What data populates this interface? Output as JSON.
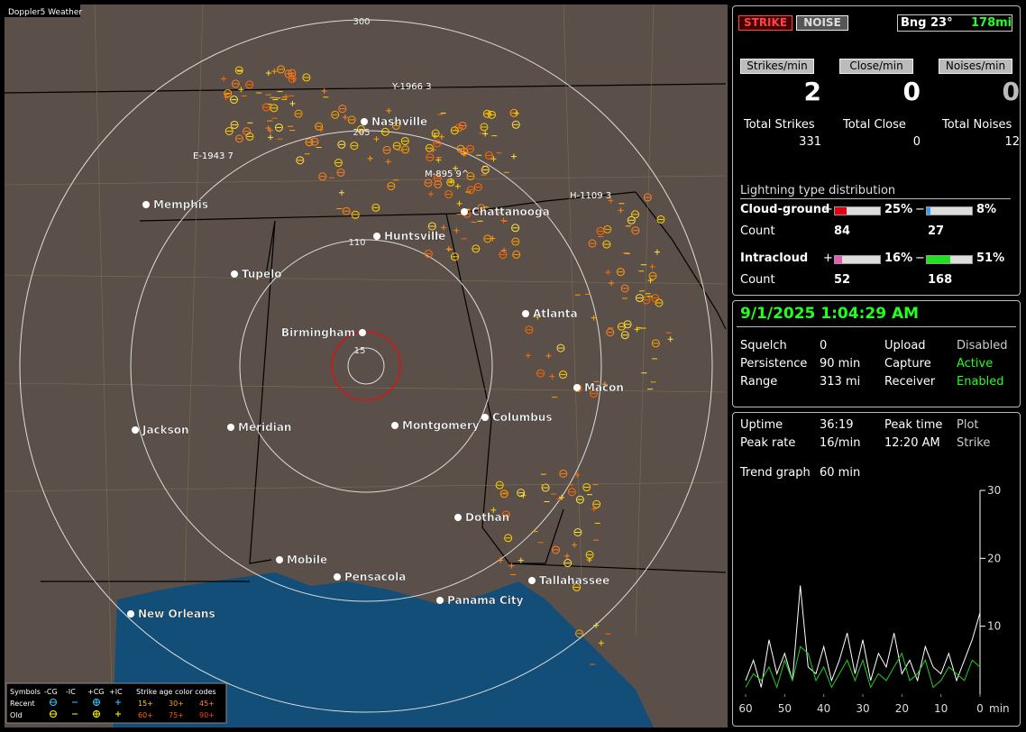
{
  "map": {
    "title": "Doppler5 Weather",
    "rings": [
      "300",
      "205",
      "110",
      "15"
    ],
    "cities": [
      "Nashville",
      "Memphis",
      "Chattanooga",
      "Huntsville",
      "Tupelo",
      "Atlanta",
      "Birmingham",
      "Macon",
      "Jackson",
      "Meridian",
      "Montgomery",
      "Columbus",
      "Dothan",
      "Mobile",
      "Pensacola",
      "Tallahassee",
      "Panama City",
      "New Orleans"
    ],
    "storms": [
      "Y-1966 3",
      "E-1943 7",
      "H-1109 3",
      "M-895 9^"
    ],
    "legend": {
      "symbols": "Symbols",
      "cols": [
        "-CG",
        "-IC",
        "+CG",
        "+IC"
      ],
      "age_title": "Strike age color codes",
      "recent": "Recent",
      "old": "Old",
      "recent_ages": [
        "15+",
        "30+",
        "45+"
      ],
      "old_ages": [
        "60+",
        "75+",
        "90+"
      ]
    }
  },
  "panel": {
    "strike": "STRIKE",
    "noise": "NOISE",
    "bearing": "Bng 23°",
    "distance": "178mi",
    "rate_labels": [
      "Strikes/min",
      "Close/min",
      "Noises/min"
    ],
    "rates": [
      2,
      0,
      0
    ],
    "total_labels": [
      "Total Strikes",
      "Total Close",
      "Total Noises"
    ],
    "totals": [
      331,
      0,
      12
    ],
    "dist_title": "Lightning type distribution",
    "rows": [
      {
        "name": "Cloud-ground",
        "plus": "25%",
        "minus": "8%",
        "count_label": "Count",
        "counts": [
          84,
          27
        ]
      },
      {
        "name": "Intracloud",
        "plus": "16%",
        "minus": "51%",
        "count_label": "Count",
        "counts": [
          52,
          168
        ]
      }
    ]
  },
  "status": {
    "datetime": "9/1/2025 1:04:29 AM",
    "items": [
      [
        "Squelch",
        "0",
        "Upload",
        "Disabled"
      ],
      [
        "Persistence",
        "90 min",
        "Capture",
        "Active"
      ],
      [
        "Range",
        "313 mi",
        "Receiver",
        "Enabled"
      ]
    ]
  },
  "stats": {
    "items": [
      [
        "Uptime",
        "36:19",
        "Peak time",
        "Plot"
      ],
      [
        "Peak rate",
        "16/min",
        "12:20 AM",
        "Strike"
      ]
    ],
    "trend_label": "Trend graph",
    "trend_value": "60 min"
  },
  "chart_data": {
    "type": "line",
    "xlim": [
      60,
      0
    ],
    "xticks": [
      60,
      50,
      40,
      30,
      20,
      10,
      0
    ],
    "x_unit": "min",
    "ylim": [
      0,
      30
    ],
    "yticks": [
      10,
      20,
      30
    ],
    "x": [
      60,
      58,
      56,
      54,
      52,
      50,
      48,
      46,
      44,
      42,
      40,
      38,
      36,
      34,
      32,
      30,
      28,
      26,
      24,
      22,
      20,
      18,
      16,
      14,
      12,
      10,
      8,
      6,
      4,
      2,
      0
    ],
    "series": [
      {
        "name": "Strike",
        "color": "#ffffff",
        "values": [
          2,
          5,
          1,
          8,
          3,
          6,
          2,
          16,
          4,
          3,
          7,
          2,
          5,
          9,
          3,
          8,
          2,
          6,
          4,
          9,
          3,
          5,
          2,
          7,
          4,
          3,
          6,
          2,
          5,
          8,
          12
        ]
      },
      {
        "name": "IC",
        "color": "#22cc22",
        "values": [
          1,
          3,
          2,
          4,
          1,
          5,
          2,
          7,
          6,
          2,
          4,
          1,
          3,
          5,
          2,
          5,
          1,
          3,
          2,
          4,
          6,
          2,
          3,
          5,
          1,
          2,
          4,
          3,
          2,
          5,
          4
        ]
      }
    ]
  }
}
